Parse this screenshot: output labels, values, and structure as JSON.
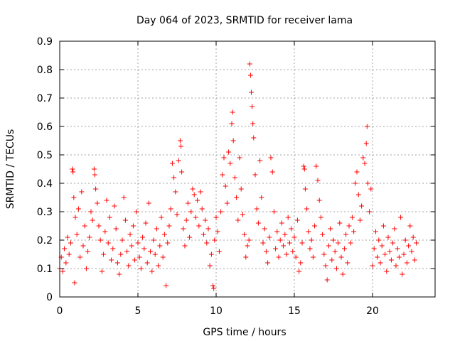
{
  "chart_data": {
    "type": "scatter",
    "title": "Day 064 of 2023, SRMTID for receiver lama",
    "xlabel": "GPS time / hours",
    "ylabel": "SRMTID / TECUs",
    "xlim": [
      0,
      24
    ],
    "ylim": [
      0,
      0.9
    ],
    "x_ticks": [
      0,
      5,
      10,
      15,
      20
    ],
    "x_tick_labels": [
      "0",
      "5",
      "10",
      "15",
      "20"
    ],
    "y_ticks": [
      0,
      0.1,
      0.2,
      0.3,
      0.4,
      0.5,
      0.6,
      0.7,
      0.8,
      0.9
    ],
    "y_tick_labels": [
      "0",
      "0.1",
      "0.2",
      "0.3",
      "0.4",
      "0.5",
      "0.6",
      "0.7",
      "0.8",
      "0.9"
    ],
    "grid": true,
    "marker": "+",
    "color": "#ff0000",
    "series": [
      {
        "name": "SRMTID",
        "points": [
          [
            0.0,
            0.1
          ],
          [
            0.1,
            0.14
          ],
          [
            0.2,
            0.09
          ],
          [
            0.3,
            0.17
          ],
          [
            0.4,
            0.12
          ],
          [
            0.5,
            0.21
          ],
          [
            0.6,
            0.15
          ],
          [
            0.7,
            0.19
          ],
          [
            0.8,
            0.45
          ],
          [
            0.85,
            0.44
          ],
          [
            0.9,
            0.35
          ],
          [
            0.95,
            0.05
          ],
          [
            1.0,
            0.28
          ],
          [
            1.1,
            0.22
          ],
          [
            1.2,
            0.31
          ],
          [
            1.3,
            0.14
          ],
          [
            1.4,
            0.37
          ],
          [
            1.5,
            0.18
          ],
          [
            1.6,
            0.25
          ],
          [
            1.7,
            0.1
          ],
          [
            1.8,
            0.16
          ],
          [
            1.9,
            0.21
          ],
          [
            2.0,
            0.3
          ],
          [
            2.1,
            0.27
          ],
          [
            2.2,
            0.45
          ],
          [
            2.25,
            0.43
          ],
          [
            2.3,
            0.38
          ],
          [
            2.4,
            0.33
          ],
          [
            2.5,
            0.25
          ],
          [
            2.6,
            0.2
          ],
          [
            2.7,
            0.09
          ],
          [
            2.8,
            0.15
          ],
          [
            2.9,
            0.23
          ],
          [
            3.0,
            0.34
          ],
          [
            3.1,
            0.19
          ],
          [
            3.2,
            0.28
          ],
          [
            3.3,
            0.13
          ],
          [
            3.4,
            0.17
          ],
          [
            3.5,
            0.32
          ],
          [
            3.6,
            0.24
          ],
          [
            3.7,
            0.12
          ],
          [
            3.8,
            0.08
          ],
          [
            3.9,
            0.15
          ],
          [
            4.0,
            0.2
          ],
          [
            4.1,
            0.35
          ],
          [
            4.2,
            0.27
          ],
          [
            4.3,
            0.16
          ],
          [
            4.4,
            0.11
          ],
          [
            4.5,
            0.22
          ],
          [
            4.6,
            0.18
          ],
          [
            4.7,
            0.25
          ],
          [
            4.8,
            0.13
          ],
          [
            4.9,
            0.3
          ],
          [
            5.0,
            0.19
          ],
          [
            5.1,
            0.14
          ],
          [
            5.2,
            0.1
          ],
          [
            5.3,
            0.21
          ],
          [
            5.4,
            0.17
          ],
          [
            5.5,
            0.26
          ],
          [
            5.6,
            0.12
          ],
          [
            5.7,
            0.33
          ],
          [
            5.8,
            0.16
          ],
          [
            5.9,
            0.09
          ],
          [
            6.0,
            0.2
          ],
          [
            6.1,
            0.15
          ],
          [
            6.2,
            0.24
          ],
          [
            6.3,
            0.11
          ],
          [
            6.4,
            0.18
          ],
          [
            6.5,
            0.28
          ],
          [
            6.6,
            0.14
          ],
          [
            6.7,
            0.22
          ],
          [
            6.8,
            0.04
          ],
          [
            6.9,
            0.19
          ],
          [
            7.0,
            0.25
          ],
          [
            7.1,
            0.31
          ],
          [
            7.2,
            0.47
          ],
          [
            7.3,
            0.42
          ],
          [
            7.4,
            0.37
          ],
          [
            7.5,
            0.29
          ],
          [
            7.6,
            0.48
          ],
          [
            7.7,
            0.55
          ],
          [
            7.75,
            0.53
          ],
          [
            7.8,
            0.44
          ],
          [
            7.9,
            0.24
          ],
          [
            8.0,
            0.18
          ],
          [
            8.1,
            0.27
          ],
          [
            8.2,
            0.33
          ],
          [
            8.3,
            0.21
          ],
          [
            8.4,
            0.3
          ],
          [
            8.5,
            0.38
          ],
          [
            8.6,
            0.36
          ],
          [
            8.7,
            0.28
          ],
          [
            8.8,
            0.34
          ],
          [
            8.9,
            0.25
          ],
          [
            9.0,
            0.37
          ],
          [
            9.1,
            0.31
          ],
          [
            9.2,
            0.22
          ],
          [
            9.3,
            0.27
          ],
          [
            9.4,
            0.19
          ],
          [
            9.5,
            0.24
          ],
          [
            9.6,
            0.11
          ],
          [
            9.7,
            0.15
          ],
          [
            9.8,
            0.04
          ],
          [
            9.85,
            0.03
          ],
          [
            9.9,
            0.2
          ],
          [
            10.0,
            0.28
          ],
          [
            10.1,
            0.23
          ],
          [
            10.2,
            0.16
          ],
          [
            10.3,
            0.3
          ],
          [
            10.4,
            0.43
          ],
          [
            10.5,
            0.49
          ],
          [
            10.6,
            0.39
          ],
          [
            10.7,
            0.33
          ],
          [
            10.8,
            0.51
          ],
          [
            10.9,
            0.47
          ],
          [
            11.0,
            0.61
          ],
          [
            11.05,
            0.65
          ],
          [
            11.1,
            0.55
          ],
          [
            11.2,
            0.42
          ],
          [
            11.3,
            0.35
          ],
          [
            11.4,
            0.27
          ],
          [
            11.5,
            0.49
          ],
          [
            11.6,
            0.38
          ],
          [
            11.7,
            0.29
          ],
          [
            11.8,
            0.22
          ],
          [
            11.9,
            0.14
          ],
          [
            12.0,
            0.18
          ],
          [
            12.1,
            0.2
          ],
          [
            12.15,
            0.82
          ],
          [
            12.2,
            0.78
          ],
          [
            12.25,
            0.72
          ],
          [
            12.3,
            0.67
          ],
          [
            12.35,
            0.61
          ],
          [
            12.4,
            0.56
          ],
          [
            12.5,
            0.43
          ],
          [
            12.6,
            0.31
          ],
          [
            12.7,
            0.26
          ],
          [
            12.8,
            0.48
          ],
          [
            12.9,
            0.35
          ],
          [
            13.0,
            0.19
          ],
          [
            13.1,
            0.24
          ],
          [
            13.2,
            0.16
          ],
          [
            13.3,
            0.12
          ],
          [
            13.4,
            0.21
          ],
          [
            13.5,
            0.49
          ],
          [
            13.6,
            0.44
          ],
          [
            13.7,
            0.3
          ],
          [
            13.8,
            0.17
          ],
          [
            13.9,
            0.23
          ],
          [
            14.0,
            0.14
          ],
          [
            14.1,
            0.2
          ],
          [
            14.2,
            0.26
          ],
          [
            14.3,
            0.18
          ],
          [
            14.4,
            0.22
          ],
          [
            14.5,
            0.15
          ],
          [
            14.6,
            0.28
          ],
          [
            14.7,
            0.19
          ],
          [
            14.8,
            0.24
          ],
          [
            14.9,
            0.16
          ],
          [
            15.0,
            0.21
          ],
          [
            15.1,
            0.14
          ],
          [
            15.2,
            0.27
          ],
          [
            15.3,
            0.09
          ],
          [
            15.4,
            0.12
          ],
          [
            15.5,
            0.19
          ],
          [
            15.6,
            0.46
          ],
          [
            15.65,
            0.45
          ],
          [
            15.7,
            0.38
          ],
          [
            15.8,
            0.31
          ],
          [
            15.9,
            0.23
          ],
          [
            16.0,
            0.17
          ],
          [
            16.1,
            0.2
          ],
          [
            16.2,
            0.14
          ],
          [
            16.3,
            0.25
          ],
          [
            16.4,
            0.46
          ],
          [
            16.5,
            0.41
          ],
          [
            16.6,
            0.34
          ],
          [
            16.7,
            0.28
          ],
          [
            16.8,
            0.22
          ],
          [
            16.9,
            0.15
          ],
          [
            17.0,
            0.11
          ],
          [
            17.1,
            0.06
          ],
          [
            17.2,
            0.18
          ],
          [
            17.3,
            0.24
          ],
          [
            17.4,
            0.13
          ],
          [
            17.5,
            0.2
          ],
          [
            17.6,
            0.16
          ],
          [
            17.7,
            0.1
          ],
          [
            17.8,
            0.19
          ],
          [
            17.9,
            0.26
          ],
          [
            18.0,
            0.14
          ],
          [
            18.1,
            0.08
          ],
          [
            18.2,
            0.17
          ],
          [
            18.3,
            0.22
          ],
          [
            18.4,
            0.12
          ],
          [
            18.5,
            0.25
          ],
          [
            18.6,
            0.19
          ],
          [
            18.7,
            0.28
          ],
          [
            18.8,
            0.23
          ],
          [
            18.9,
            0.4
          ],
          [
            19.0,
            0.44
          ],
          [
            19.1,
            0.36
          ],
          [
            19.2,
            0.27
          ],
          [
            19.3,
            0.32
          ],
          [
            19.4,
            0.49
          ],
          [
            19.5,
            0.47
          ],
          [
            19.6,
            0.54
          ],
          [
            19.65,
            0.6
          ],
          [
            19.7,
            0.4
          ],
          [
            19.8,
            0.3
          ],
          [
            19.9,
            0.38
          ],
          [
            20.0,
            0.11
          ],
          [
            20.1,
            0.17
          ],
          [
            20.2,
            0.23
          ],
          [
            20.3,
            0.14
          ],
          [
            20.4,
            0.2
          ],
          [
            20.5,
            0.12
          ],
          [
            20.6,
            0.18
          ],
          [
            20.7,
            0.25
          ],
          [
            20.8,
            0.15
          ],
          [
            20.9,
            0.09
          ],
          [
            21.0,
            0.21
          ],
          [
            21.1,
            0.16
          ],
          [
            21.2,
            0.13
          ],
          [
            21.3,
            0.19
          ],
          [
            21.4,
            0.24
          ],
          [
            21.5,
            0.11
          ],
          [
            21.6,
            0.17
          ],
          [
            21.7,
            0.14
          ],
          [
            21.8,
            0.28
          ],
          [
            21.9,
            0.08
          ],
          [
            22.0,
            0.15
          ],
          [
            22.1,
            0.2
          ],
          [
            22.2,
            0.12
          ],
          [
            22.3,
            0.18
          ],
          [
            22.4,
            0.25
          ],
          [
            22.5,
            0.16
          ],
          [
            22.6,
            0.21
          ],
          [
            22.7,
            0.13
          ],
          [
            22.8,
            0.19
          ]
        ]
      }
    ]
  }
}
